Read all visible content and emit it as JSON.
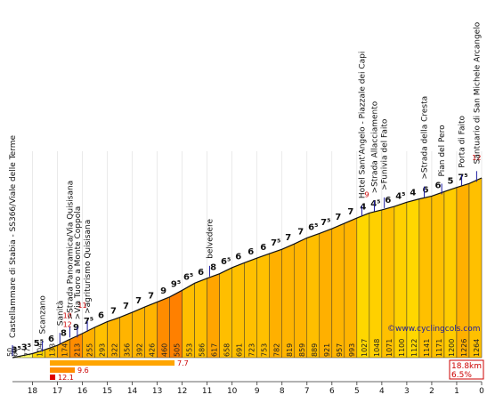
{
  "chart_data": {
    "type": "area",
    "title": "",
    "xlabel": "",
    "ylabel": "",
    "watermark": "©www.cyclingcols.com",
    "x_ticks": [
      "18",
      "17",
      "16",
      "15",
      "14",
      "13",
      "12",
      "11",
      "10",
      "9",
      "8",
      "7",
      "6",
      "5",
      "4",
      "3",
      "2",
      "1",
      "0"
    ],
    "distance_km": [
      18.8,
      18.5,
      18,
      17.5,
      17,
      16.5,
      16,
      15.5,
      15,
      14.5,
      14,
      13.5,
      13,
      12.5,
      12,
      11.5,
      11,
      10.5,
      10,
      9.5,
      9,
      8.5,
      8,
      7.5,
      7,
      6.5,
      6,
      5.5,
      5,
      4.5,
      4,
      3.5,
      3,
      2.5,
      2,
      1.5,
      1,
      0.5,
      0
    ],
    "altitude_labels": [
      "50",
      "60",
      "77",
      "104",
      "133",
      "174",
      "213",
      "255",
      "293",
      "322",
      "356",
      "392",
      "426",
      "460",
      "505",
      "553",
      "586",
      "617",
      "658",
      "691",
      "723",
      "753",
      "782",
      "819",
      "859",
      "889",
      "921",
      "957",
      "993",
      "1027",
      "1048",
      "1071",
      "1100",
      "1122",
      "1141",
      "1171",
      "1200",
      "1226",
      "1264"
    ],
    "segment_gradients": [
      "3⁵",
      "3⁵",
      "5⁵",
      "6",
      "8",
      "9",
      "7⁵",
      "6",
      "7",
      "7",
      "7",
      "7",
      "9",
      "9⁵",
      "6⁵",
      "6",
      "8",
      "6⁵",
      "6",
      "6",
      "6",
      "7⁵",
      "7",
      "7",
      "6⁵",
      "7⁵",
      "7",
      "7",
      "4",
      "4⁵",
      "6",
      "4⁵",
      "4",
      "6",
      "6",
      "5",
      "7⁵"
    ],
    "segment_colors": [
      "#ffff66",
      "#ffff66",
      "#ffd700",
      "#ffc000",
      "#ffa500",
      "#ff8c00",
      "#ffb000",
      "#ffc000",
      "#ffb400",
      "#ffb400",
      "#ffb400",
      "#ffb400",
      "#ff8c00",
      "#ff8000",
      "#ffbe00",
      "#ffc000",
      "#ffa500",
      "#ffbe00",
      "#ffc000",
      "#ffc000",
      "#ffc000",
      "#ffb000",
      "#ffb400",
      "#ffb400",
      "#ffbe00",
      "#ffb000",
      "#ffb400",
      "#ffb400",
      "#ffd700",
      "#ffd000",
      "#ffc000",
      "#ffd000",
      "#ffd700",
      "#ffc000",
      "#ffc000",
      "#ffcc00",
      "#ffb000"
    ],
    "max_gradient_labels": [
      {
        "km": 16.6,
        "value": "10"
      },
      {
        "km": 16.6,
        "value": "12"
      },
      {
        "km": 16.0,
        "value": "11"
      },
      {
        "km": 4.6,
        "value": "9"
      },
      {
        "km": 0.2,
        "value": "12"
      }
    ],
    "places": [
      {
        "km": 18.8,
        "name": "Castellammare di Stabia - SS366/Viale delle Terme"
      },
      {
        "km": 17.6,
        "name": "Scanzano"
      },
      {
        "km": 16.9,
        "name": "Sanità"
      },
      {
        "km": 16.5,
        "name": ">Strada Panoramica/Via Quisisana"
      },
      {
        "km": 16.2,
        "name": ">Via Tuoro a Monte Coppola"
      },
      {
        "km": 15.8,
        "name": ">agriturismo Quisisana"
      },
      {
        "km": 10.9,
        "name": "belvedere"
      },
      {
        "km": 4.8,
        "name": "Hotel Sant'Angelo - Piazzale dei Capi"
      },
      {
        "km": 4.3,
        "name": ">Strada Allacciamento"
      },
      {
        "km": 3.9,
        "name": ">Funivia del Faito"
      },
      {
        "km": 2.3,
        "name": ">Strada della Cresta"
      },
      {
        "km": 1.6,
        "name": "Pian del Pero"
      },
      {
        "km": 0.8,
        "name": "Porta di Faito"
      },
      {
        "km": 0.2,
        "name": "Santuario di San Michele Arcangelo"
      }
    ],
    "difficulty_bars": [
      {
        "value": "7.7",
        "color": "#ffa500"
      },
      {
        "value": "9.6",
        "color": "#ff8c00"
      },
      {
        "value": "12.1",
        "color": "#dd0000"
      }
    ],
    "summary": [
      "18.8km",
      "6.5%"
    ]
  }
}
